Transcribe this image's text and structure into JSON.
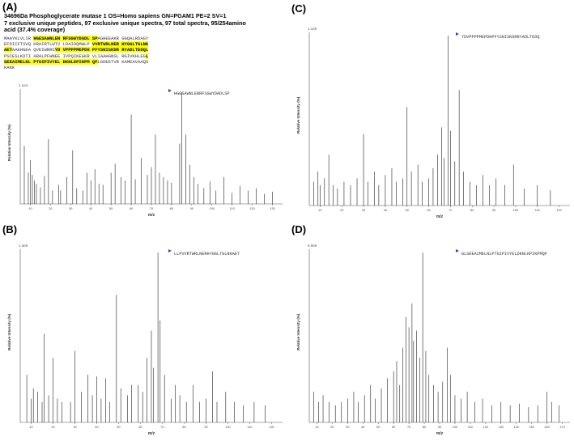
{
  "figure": {
    "panels": [
      {
        "id": "A",
        "label": "(A)"
      },
      {
        "id": "B",
        "label": "(B)"
      },
      {
        "id": "C",
        "label": "(C)"
      },
      {
        "id": "D",
        "label": "(D)"
      }
    ]
  },
  "protein": {
    "title_line1": "34696Da Phosphoglycerate mutase 1 OS=Homo sapiens GN=PGAM1 PE=2 SV=1",
    "title_line2": "7 exclusive unique peptides, 97 exclusive unique spectra, 97 total spectra, 95/254amino",
    "title_line3": "acid (37.4% coverage)",
    "sequence_lines": [
      [
        {
          "t": "MAAYKLVLIR ",
          "h": false
        },
        {
          "t": "HGESAWNLEN RFSGWYDADL SP",
          "h": true
        },
        {
          "t": "AGHEEAKR GGQALRDAGY",
          "h": false
        }
      ],
      [
        {
          "t": "EFDICFTSVQ KRAIRTLWTV LDAIDQMWLP ",
          "h": false
        },
        {
          "t": "VVRTWRLNER HYGGLTGLNK",
          "h": true
        }
      ],
      [
        {
          "t": "AET",
          "h": true
        },
        {
          "t": "AAKHGEA QVKIWRRS",
          "h": false
        },
        {
          "t": "YD VPPPPMEPDH PFYSNISKDR RYADLTEDQL",
          "h": true
        }
      ],
      [
        {
          "t": "PSCESLKDTI ARALPFWNEE IVPQIKEGKR VLIAAHGNSL RGIVKHLEG",
          "h": false
        },
        {
          "t": "L",
          "h": true
        }
      ],
      [
        {
          "t": "SEEAIMELNL PTGIPIVYEL DKNLKPIKPM QF",
          "h": true
        },
        {
          "t": "LGDEETVR KAMEAVAAQG",
          "h": false
        }
      ],
      [
        {
          "t": "KAKK",
          "h": false
        }
      ]
    ]
  },
  "spectra": [
    {
      "id": "A",
      "peptide": "HGESAWNLENRFSGWYDADLSP",
      "intensity_unit": "1.1e4",
      "xlabel": "m/z",
      "ylabel": "Relative Intensity (%)",
      "x_ticks": [
        "10",
        "20",
        "30",
        "40",
        "50",
        "60",
        "70",
        "80",
        "90",
        "100",
        "110",
        "120",
        "130"
      ],
      "chart_data": {
        "type": "spectrum",
        "xlabel": "m/z",
        "ylabel": "Relative Intensity (%)",
        "xlim": [
          5,
          135
        ],
        "ylim": [
          0,
          100
        ],
        "peaks": [
          {
            "x": 7,
            "y": 52
          },
          {
            "x": 9,
            "y": 28
          },
          {
            "x": 10,
            "y": 39
          },
          {
            "x": 11,
            "y": 26
          },
          {
            "x": 12,
            "y": 21
          },
          {
            "x": 13,
            "y": 18
          },
          {
            "x": 15,
            "y": 15
          },
          {
            "x": 17,
            "y": 25
          },
          {
            "x": 19,
            "y": 58
          },
          {
            "x": 21,
            "y": 12
          },
          {
            "x": 24,
            "y": 17
          },
          {
            "x": 25,
            "y": 12
          },
          {
            "x": 28,
            "y": 24
          },
          {
            "x": 31,
            "y": 48
          },
          {
            "x": 33,
            "y": 14
          },
          {
            "x": 36,
            "y": 12
          },
          {
            "x": 38,
            "y": 28
          },
          {
            "x": 40,
            "y": 21
          },
          {
            "x": 42,
            "y": 31
          },
          {
            "x": 44,
            "y": 18
          },
          {
            "x": 46,
            "y": 17
          },
          {
            "x": 50,
            "y": 28
          },
          {
            "x": 52,
            "y": 36
          },
          {
            "x": 55,
            "y": 24
          },
          {
            "x": 57,
            "y": 21
          },
          {
            "x": 60,
            "y": 80
          },
          {
            "x": 62,
            "y": 22
          },
          {
            "x": 65,
            "y": 41
          },
          {
            "x": 68,
            "y": 26
          },
          {
            "x": 70,
            "y": 33
          },
          {
            "x": 72,
            "y": 62
          },
          {
            "x": 74,
            "y": 28
          },
          {
            "x": 76,
            "y": 24
          },
          {
            "x": 78,
            "y": 21
          },
          {
            "x": 80,
            "y": 19
          },
          {
            "x": 84,
            "y": 54
          },
          {
            "x": 85,
            "y": 100
          },
          {
            "x": 87,
            "y": 62
          },
          {
            "x": 89,
            "y": 35
          },
          {
            "x": 91,
            "y": 24
          },
          {
            "x": 93,
            "y": 18
          },
          {
            "x": 96,
            "y": 14
          },
          {
            "x": 99,
            "y": 20
          },
          {
            "x": 102,
            "y": 12
          },
          {
            "x": 106,
            "y": 24
          },
          {
            "x": 110,
            "y": 10
          },
          {
            "x": 114,
            "y": 16
          },
          {
            "x": 118,
            "y": 12
          },
          {
            "x": 122,
            "y": 14
          },
          {
            "x": 126,
            "y": 9
          },
          {
            "x": 130,
            "y": 11
          }
        ]
      }
    },
    {
      "id": "B",
      "peptide": "LLPVVRTWRLNERHYGGLTGLNKAET",
      "intensity_unit": "1.3e5",
      "xlabel": "m/z",
      "ylabel": "Relative Intensity (%)",
      "x_ticks": [
        "10",
        "20",
        "30",
        "40",
        "50",
        "60",
        "70",
        "80",
        "90",
        "100",
        "110",
        "120"
      ],
      "chart_data": {
        "type": "spectrum",
        "xlabel": "m/z",
        "ylabel": "Relative Intensity (%)",
        "xlim": [
          5,
          125
        ],
        "ylim": [
          0,
          100
        ],
        "peaks": [
          {
            "x": 8,
            "y": 28
          },
          {
            "x": 10,
            "y": 14
          },
          {
            "x": 11,
            "y": 20
          },
          {
            "x": 13,
            "y": 18
          },
          {
            "x": 15,
            "y": 12
          },
          {
            "x": 16,
            "y": 52
          },
          {
            "x": 18,
            "y": 16
          },
          {
            "x": 20,
            "y": 38
          },
          {
            "x": 22,
            "y": 14
          },
          {
            "x": 24,
            "y": 12
          },
          {
            "x": 28,
            "y": 12
          },
          {
            "x": 30,
            "y": 42
          },
          {
            "x": 33,
            "y": 18
          },
          {
            "x": 36,
            "y": 28
          },
          {
            "x": 38,
            "y": 16
          },
          {
            "x": 40,
            "y": 27
          },
          {
            "x": 42,
            "y": 14
          },
          {
            "x": 44,
            "y": 26
          },
          {
            "x": 46,
            "y": 12
          },
          {
            "x": 49,
            "y": 75
          },
          {
            "x": 51,
            "y": 20
          },
          {
            "x": 54,
            "y": 16
          },
          {
            "x": 56,
            "y": 22
          },
          {
            "x": 59,
            "y": 22
          },
          {
            "x": 61,
            "y": 18
          },
          {
            "x": 63,
            "y": 38
          },
          {
            "x": 65,
            "y": 54
          },
          {
            "x": 66,
            "y": 32
          },
          {
            "x": 68,
            "y": 100
          },
          {
            "x": 69,
            "y": 60
          },
          {
            "x": 71,
            "y": 28
          },
          {
            "x": 74,
            "y": 14
          },
          {
            "x": 76,
            "y": 22
          },
          {
            "x": 78,
            "y": 16
          },
          {
            "x": 81,
            "y": 12
          },
          {
            "x": 84,
            "y": 22
          },
          {
            "x": 87,
            "y": 12
          },
          {
            "x": 90,
            "y": 14
          },
          {
            "x": 93,
            "y": 30
          },
          {
            "x": 95,
            "y": 12
          },
          {
            "x": 99,
            "y": 18
          },
          {
            "x": 103,
            "y": 12
          },
          {
            "x": 107,
            "y": 10
          },
          {
            "x": 112,
            "y": 12
          },
          {
            "x": 117,
            "y": 10
          }
        ]
      }
    },
    {
      "id": "C",
      "peptide": "YDVPPPPMEPDHPFYSNISKDRRYADLTEDQ",
      "intensity_unit": "1.1e5",
      "xlabel": "m/z",
      "ylabel": "Relative Intensity (%)",
      "x_ticks": [
        "10",
        "20",
        "30",
        "40",
        "50",
        "60",
        "70",
        "80",
        "90",
        "100",
        "110",
        "120"
      ],
      "chart_data": {
        "type": "spectrum",
        "xlabel": "m/z",
        "ylabel": "Relative Intensity (%)",
        "xlim": [
          5,
          125
        ],
        "ylim": [
          0,
          100
        ],
        "peaks": [
          {
            "x": 7,
            "y": 14
          },
          {
            "x": 9,
            "y": 20
          },
          {
            "x": 10,
            "y": 12
          },
          {
            "x": 12,
            "y": 16
          },
          {
            "x": 14,
            "y": 30
          },
          {
            "x": 16,
            "y": 12
          },
          {
            "x": 18,
            "y": 10
          },
          {
            "x": 21,
            "y": 14
          },
          {
            "x": 24,
            "y": 12
          },
          {
            "x": 27,
            "y": 16
          },
          {
            "x": 30,
            "y": 42
          },
          {
            "x": 32,
            "y": 14
          },
          {
            "x": 35,
            "y": 20
          },
          {
            "x": 37,
            "y": 12
          },
          {
            "x": 40,
            "y": 18
          },
          {
            "x": 43,
            "y": 22
          },
          {
            "x": 45,
            "y": 14
          },
          {
            "x": 48,
            "y": 16
          },
          {
            "x": 50,
            "y": 58
          },
          {
            "x": 52,
            "y": 20
          },
          {
            "x": 55,
            "y": 24
          },
          {
            "x": 57,
            "y": 14
          },
          {
            "x": 60,
            "y": 16
          },
          {
            "x": 62,
            "y": 22
          },
          {
            "x": 64,
            "y": 30
          },
          {
            "x": 66,
            "y": 46
          },
          {
            "x": 67,
            "y": 28
          },
          {
            "x": 69,
            "y": 100
          },
          {
            "x": 70,
            "y": 44
          },
          {
            "x": 72,
            "y": 26
          },
          {
            "x": 74,
            "y": 68
          },
          {
            "x": 76,
            "y": 20
          },
          {
            "x": 79,
            "y": 14
          },
          {
            "x": 82,
            "y": 12
          },
          {
            "x": 85,
            "y": 18
          },
          {
            "x": 88,
            "y": 12
          },
          {
            "x": 91,
            "y": 16
          },
          {
            "x": 95,
            "y": 12
          },
          {
            "x": 99,
            "y": 24
          },
          {
            "x": 104,
            "y": 10
          },
          {
            "x": 110,
            "y": 12
          },
          {
            "x": 116,
            "y": 9
          }
        ]
      }
    },
    {
      "id": "D",
      "peptide": "GLSEEAIMELNLPTGIPIVYELDKNLKPIKPMQF",
      "intensity_unit": "5.9e5",
      "xlabel": "m/z",
      "ylabel": "Relative Intensity (%)",
      "x_ticks": [
        "10",
        "20",
        "30",
        "40",
        "50",
        "60",
        "70",
        "80",
        "90",
        "100",
        "110",
        "120",
        "130",
        "140",
        "150",
        "160",
        "170"
      ],
      "chart_data": {
        "type": "spectrum",
        "xlabel": "m/z",
        "ylabel": "Relative Intensity (%)",
        "xlim": [
          5,
          175
        ],
        "ylim": [
          0,
          100
        ],
        "peaks": [
          {
            "x": 8,
            "y": 18
          },
          {
            "x": 11,
            "y": 12
          },
          {
            "x": 14,
            "y": 16
          },
          {
            "x": 18,
            "y": 12
          },
          {
            "x": 22,
            "y": 10
          },
          {
            "x": 26,
            "y": 12
          },
          {
            "x": 30,
            "y": 14
          },
          {
            "x": 34,
            "y": 18
          },
          {
            "x": 37,
            "y": 12
          },
          {
            "x": 41,
            "y": 16
          },
          {
            "x": 45,
            "y": 22
          },
          {
            "x": 48,
            "y": 14
          },
          {
            "x": 52,
            "y": 20
          },
          {
            "x": 56,
            "y": 26
          },
          {
            "x": 60,
            "y": 30
          },
          {
            "x": 62,
            "y": 36
          },
          {
            "x": 64,
            "y": 22
          },
          {
            "x": 66,
            "y": 44
          },
          {
            "x": 68,
            "y": 62
          },
          {
            "x": 70,
            "y": 56
          },
          {
            "x": 72,
            "y": 70
          },
          {
            "x": 73,
            "y": 48
          },
          {
            "x": 75,
            "y": 54
          },
          {
            "x": 77,
            "y": 38
          },
          {
            "x": 79,
            "y": 100
          },
          {
            "x": 81,
            "y": 42
          },
          {
            "x": 83,
            "y": 28
          },
          {
            "x": 86,
            "y": 22
          },
          {
            "x": 89,
            "y": 18
          },
          {
            "x": 92,
            "y": 24
          },
          {
            "x": 95,
            "y": 44
          },
          {
            "x": 97,
            "y": 28
          },
          {
            "x": 100,
            "y": 16
          },
          {
            "x": 104,
            "y": 14
          },
          {
            "x": 108,
            "y": 18
          },
          {
            "x": 113,
            "y": 12
          },
          {
            "x": 118,
            "y": 14
          },
          {
            "x": 124,
            "y": 10
          },
          {
            "x": 130,
            "y": 12
          },
          {
            "x": 136,
            "y": 10
          },
          {
            "x": 142,
            "y": 11
          },
          {
            "x": 148,
            "y": 9
          },
          {
            "x": 154,
            "y": 10
          },
          {
            "x": 160,
            "y": 18
          },
          {
            "x": 163,
            "y": 12
          },
          {
            "x": 168,
            "y": 10
          }
        ]
      }
    }
  ],
  "colors": {
    "peak": "#222222",
    "b_ion_label": "#2e9a36",
    "y_ion_label": "#e07b39",
    "highlight": "#ffff00",
    "arrow": "#3a3ad8"
  }
}
